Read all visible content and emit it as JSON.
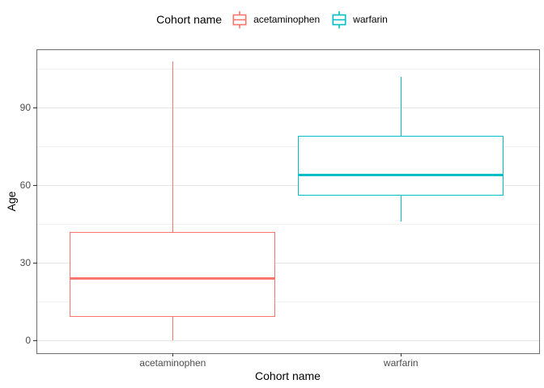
{
  "chart_data": {
    "type": "boxplot",
    "title": "",
    "legend_title": "Cohort name",
    "legend_position": "top",
    "xlabel": "Cohort name",
    "ylabel": "Age",
    "categories": [
      "acetaminophen",
      "warfarin"
    ],
    "series": [
      {
        "name": "acetaminophen",
        "color": "#F8766D",
        "whisker_low": 0,
        "q1": 9,
        "median": 24,
        "q3": 42,
        "whisker_high": 108,
        "outliers": []
      },
      {
        "name": "warfarin",
        "color": "#00BFC4",
        "whisker_low": 46,
        "q1": 56,
        "median": 64,
        "q3": 79,
        "whisker_high": 102,
        "outliers": []
      }
    ],
    "y_major_ticks": [
      0,
      30,
      60,
      90
    ],
    "y_minor_gridlines": [
      15,
      45,
      75,
      105
    ],
    "ylim": [
      -5,
      112.3
    ],
    "grid": "major+minor",
    "legend_entries": [
      "acetaminophen",
      "warfarin"
    ],
    "colors": {
      "major_grid": "#E5E5E5",
      "minor_grid": "#F2F2F2",
      "panel_border": "#6E6E6E",
      "tick_mark": "#333333",
      "tick_label": "#4D4D4D",
      "title_text": "#000000"
    }
  }
}
